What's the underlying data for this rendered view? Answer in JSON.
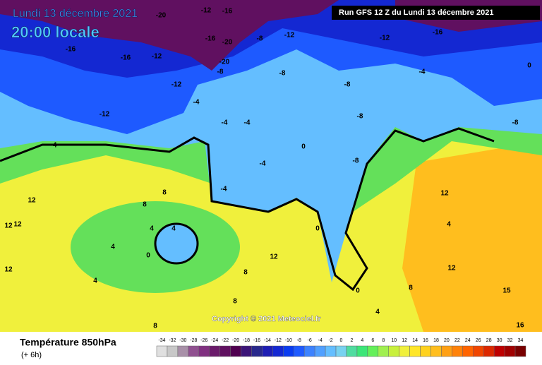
{
  "header": {
    "date": "Lundi 13 décembre 2021",
    "time": "20:00 locale",
    "run": "Run GFS 12 Z du Lundi 13 décembre 2021"
  },
  "copyright": "Copyright © 2021 Meteociel.fr",
  "footer": {
    "title": "Température 850hPa",
    "lead": "(+ 6h)"
  },
  "scale": {
    "labels": [
      -34,
      -32,
      -30,
      -28,
      -26,
      -24,
      -22,
      -20,
      -18,
      -16,
      -14,
      -12,
      -10,
      -8,
      -6,
      -4,
      -2,
      0,
      2,
      4,
      6,
      8,
      10,
      12,
      14,
      16,
      18,
      20,
      22,
      24,
      26,
      28,
      30,
      32,
      34
    ],
    "colors": [
      "#e0e0e0",
      "#c8c8c8",
      "#a890a8",
      "#905090",
      "#803080",
      "#6a1a6a",
      "#601060",
      "#500050",
      "#3c1478",
      "#28288c",
      "#1e1eb4",
      "#1428d2",
      "#0a3cf0",
      "#1e5aff",
      "#3c82ff",
      "#50a0ff",
      "#64beff",
      "#78d2f0",
      "#50dca0",
      "#3ce678",
      "#64f05a",
      "#a0f050",
      "#c8f03c",
      "#f0f03c",
      "#ffe628",
      "#ffd21e",
      "#ffbe1e",
      "#ffa014",
      "#ff820a",
      "#ff6400",
      "#f04600",
      "#dc2800",
      "#be0000",
      "#a00000",
      "#780000"
    ]
  },
  "map_labels": [
    -20,
    -12,
    -16,
    -16,
    -16,
    -12,
    -16,
    -20,
    -8,
    -12,
    -12,
    -16,
    -20,
    -8,
    -12,
    -12,
    -4,
    -4,
    -4,
    -4,
    -8,
    -8,
    -8,
    -4,
    -8,
    0,
    -4,
    -4,
    -8,
    8,
    8,
    4,
    4,
    0,
    4,
    4,
    12,
    12,
    12,
    12,
    12,
    0,
    8,
    4,
    8,
    12,
    4,
    12,
    15,
    16,
    0,
    8,
    8,
    0
  ]
}
